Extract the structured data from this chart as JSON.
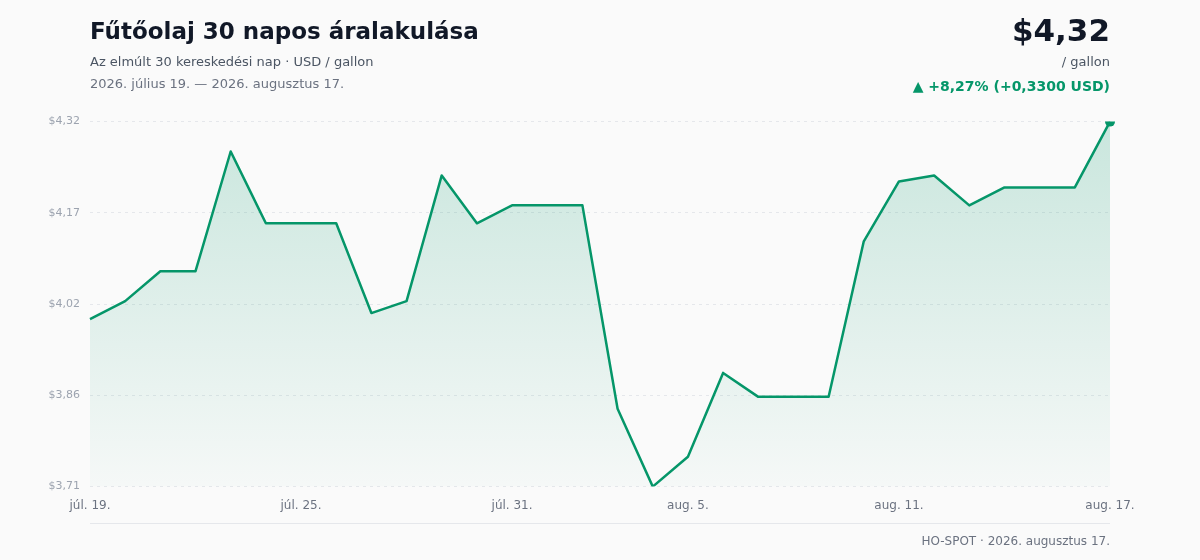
{
  "chart_data": {
    "type": "area",
    "title": "Fűtőolaj 30 napos áralakulása",
    "subtitle": "Az elmúlt 30 kereskedési nap · USD / gallon",
    "annotations": [
      "2026. július 19. — 2026. augusztus 17.",
      "$4,32",
      "/ gallon",
      "▲ +8,27% (+0,3300 USD)",
      "HO-SPOT · 2026. augusztus 17."
    ],
    "categories": [
      "júl. 19.",
      null,
      null,
      null,
      null,
      null,
      "júl. 25.",
      null,
      null,
      null,
      null,
      null,
      "júl. 31.",
      null,
      null,
      null,
      null,
      "aug. 5.",
      null,
      null,
      null,
      null,
      null,
      "aug. 11.",
      null,
      null,
      null,
      null,
      null,
      "aug. 17."
    ],
    "series": [
      {
        "color": "#059669",
        "values": [
          3.99,
          4.02,
          4.07,
          4.07,
          4.27,
          4.15,
          4.15,
          4.15,
          4.0,
          4.02,
          4.23,
          4.15,
          4.18,
          4.18,
          4.18,
          3.84,
          3.71,
          3.76,
          3.9,
          3.86,
          3.86,
          3.86,
          4.12,
          4.22,
          4.23,
          4.18,
          4.21,
          4.21,
          4.21,
          4.32
        ]
      },
      {
        "type": "scatter",
        "color": "#059669",
        "x": [
          "aug. 17."
        ],
        "values": [
          4.32
        ]
      }
    ],
    "ylim": [
      3.71,
      4.32
    ],
    "yticks": [
      {
        "value": 3.71,
        "label": "$3,71"
      },
      {
        "value": 3.8625,
        "label": "$3,86"
      },
      {
        "value": 4.015,
        "label": "$4,02"
      },
      {
        "value": 4.1675,
        "label": "$4,17"
      },
      {
        "value": 4.32,
        "label": "$4,32"
      }
    ],
    "grid": "y",
    "legend": false,
    "line_style": "solid"
  }
}
